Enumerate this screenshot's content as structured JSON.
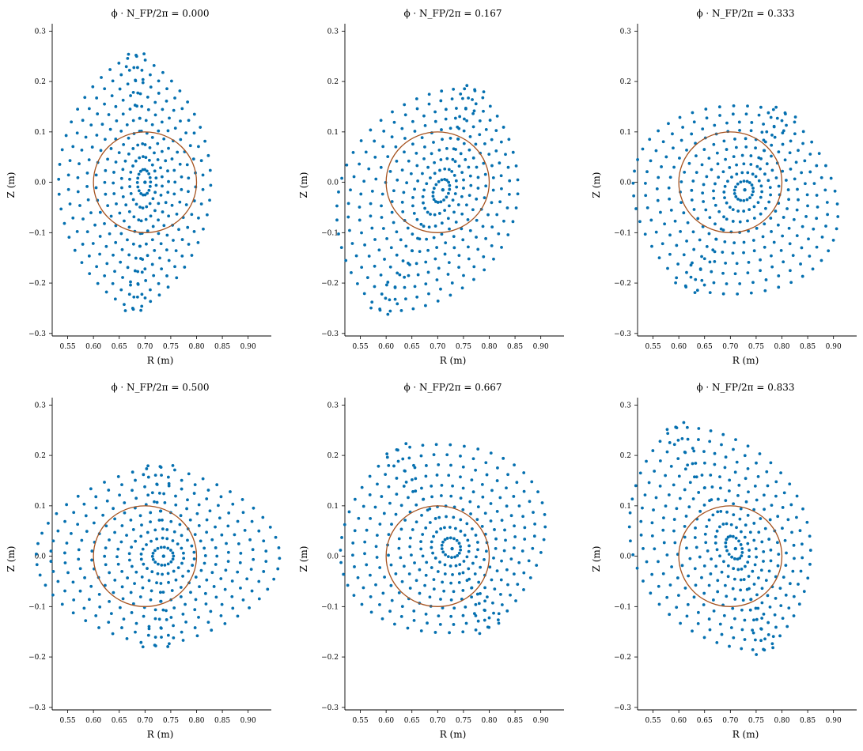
{
  "chart_data": {
    "type": "scatter",
    "figure_kind": "Poincare cross-sections",
    "colors": {
      "points": "#0570b0",
      "boundary": "#a6521e"
    },
    "xlim": [
      0.52,
      0.945
    ],
    "ylim": [
      -0.305,
      0.31
    ],
    "xticks": [
      0.55,
      0.6,
      0.65,
      0.7,
      0.75,
      0.8,
      0.85,
      0.9
    ],
    "xtick_labels": [
      "0.55",
      "0.60",
      "0.65",
      "0.70",
      "0.75",
      "0.80",
      "0.85",
      "0.90"
    ],
    "yticks": [
      -0.3,
      -0.2,
      -0.1,
      0.0,
      0.1,
      0.2,
      0.3
    ],
    "ytick_labels": [
      "−0.3",
      "−0.2",
      "−0.1",
      "0.0",
      "0.1",
      "0.2",
      "0.3"
    ],
    "xlabel": "R (m)",
    "ylabel": "Z (m)",
    "boundary_circle": {
      "center_r": 0.7,
      "center_z": 0.0,
      "radius": 0.1
    },
    "panels": [
      {
        "title": "ϕ · N_FP/2π = 0.000",
        "phase": 0.0,
        "axis_r": 0.7,
        "axis_z": 0.0,
        "outer_r0": 0.68,
        "outer_z0": 0.0,
        "outer_a": 0.125,
        "outer_b": 0.255,
        "tilt_deg": 0,
        "surfaces": 10
      },
      {
        "title": "ϕ · N_FP/2π = 0.167",
        "phase": 0.167,
        "axis_r": 0.71,
        "axis_z": -0.015,
        "outer_r0": 0.68,
        "outer_z0": -0.035,
        "outer_a": 0.145,
        "outer_b": 0.24,
        "tilt_deg": -22,
        "surfaces": 10
      },
      {
        "title": "ϕ · N_FP/2π = 0.333",
        "phase": 0.333,
        "axis_r": 0.728,
        "axis_z": -0.015,
        "outer_r0": 0.71,
        "outer_z0": -0.035,
        "outer_a": 0.175,
        "outer_b": 0.2,
        "tilt_deg": -28,
        "surfaces": 10
      },
      {
        "title": "ϕ · N_FP/2π = 0.500",
        "phase": 0.5,
        "axis_r": 0.736,
        "axis_z": 0.0,
        "outer_r0": 0.725,
        "outer_z0": 0.0,
        "outer_a": 0.2,
        "outer_b": 0.18,
        "tilt_deg": 0,
        "surfaces": 10
      },
      {
        "title": "ϕ · N_FP/2π = 0.667",
        "phase": 0.667,
        "axis_r": 0.728,
        "axis_z": 0.015,
        "outer_r0": 0.71,
        "outer_z0": 0.035,
        "outer_a": 0.175,
        "outer_b": 0.2,
        "tilt_deg": 28,
        "surfaces": 10
      },
      {
        "title": "ϕ · N_FP/2π = 0.833",
        "phase": 0.833,
        "axis_r": 0.71,
        "axis_z": 0.015,
        "outer_r0": 0.68,
        "outer_z0": 0.035,
        "outer_a": 0.145,
        "outer_b": 0.24,
        "tilt_deg": 22,
        "surfaces": 10
      }
    ]
  }
}
